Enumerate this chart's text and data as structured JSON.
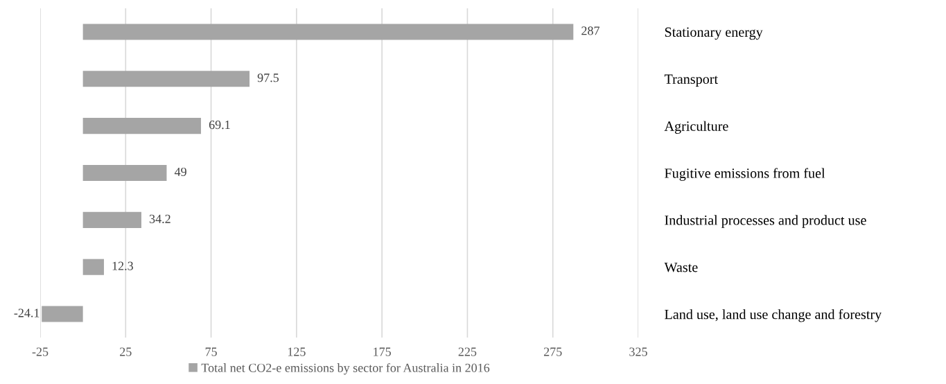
{
  "chart_data": {
    "type": "bar",
    "orientation": "horizontal",
    "categories": [
      "Stationary energy",
      "Transport",
      "Agriculture",
      "Fugitive emissions from fuel",
      "Industrial processes and product use",
      "Waste",
      "Land use, land use change and forestry"
    ],
    "series": [
      {
        "name": "Total net CO2-e emissions by sector for Australia in 2016",
        "color": "#a5a5a5",
        "values": [
          287,
          97.5,
          69.1,
          49,
          34.2,
          12.3,
          -24.1
        ]
      }
    ],
    "xlim": [
      -25,
      325
    ],
    "xticks": [
      -25,
      25,
      75,
      125,
      175,
      225,
      275,
      325
    ],
    "grid": "x",
    "legend": "bottom",
    "data_labels": true
  }
}
